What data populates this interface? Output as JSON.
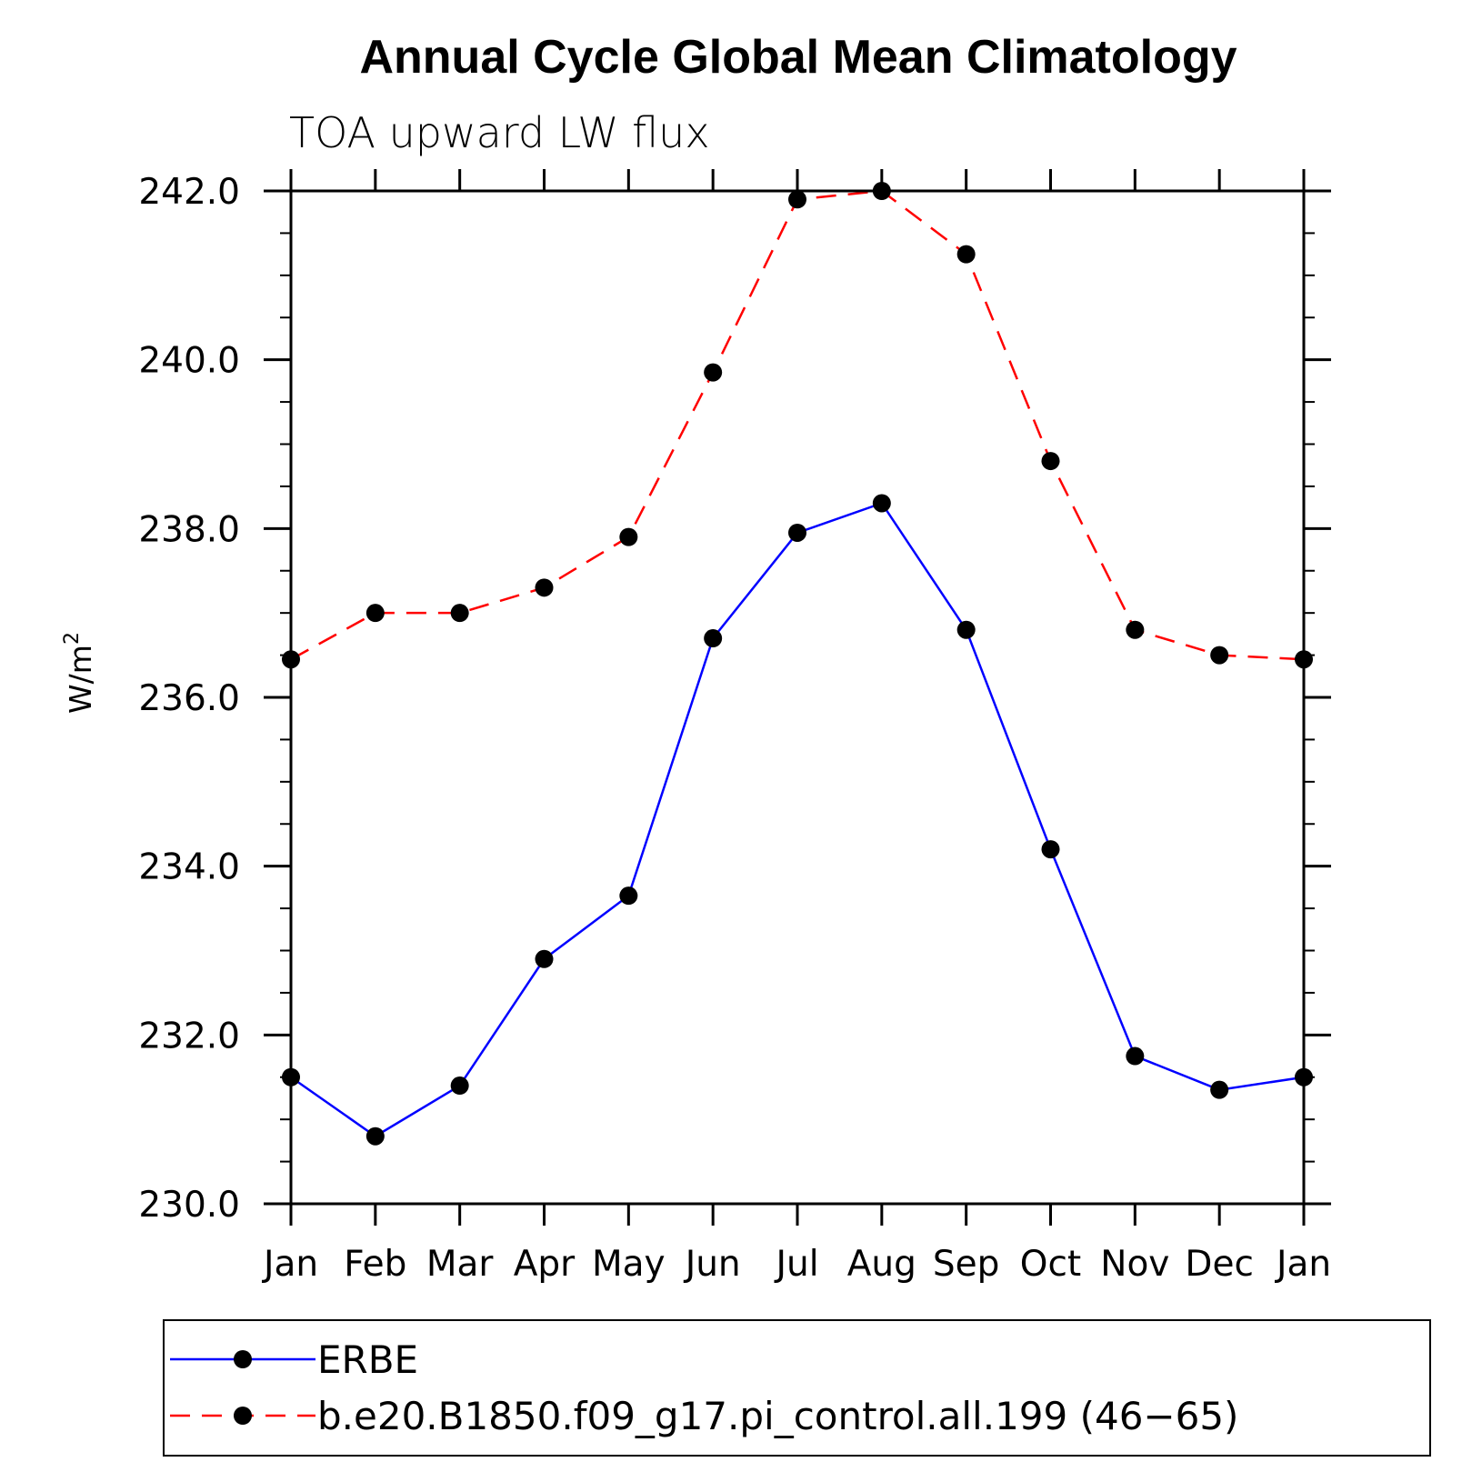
{
  "chart_data": {
    "type": "line",
    "title": "Annual Cycle Global Mean Climatology",
    "subtitle": "TOA upward LW flux",
    "xlabel": "",
    "ylabel": "W/m",
    "ylabel_superscript": "2",
    "categories": [
      "Jan",
      "Feb",
      "Mar",
      "Apr",
      "May",
      "Jun",
      "Jul",
      "Aug",
      "Sep",
      "Oct",
      "Nov",
      "Dec",
      "Jan"
    ],
    "ylim": [
      230.0,
      242.0
    ],
    "yticks": [
      "230.0",
      "232.0",
      "234.0",
      "236.0",
      "238.0",
      "240.0",
      "242.0"
    ],
    "legend_position": "bottom",
    "series": [
      {
        "name": "ERBE",
        "color": "#0000ff",
        "style": "solid",
        "marker": "filled-circle",
        "values": [
          231.5,
          230.8,
          231.4,
          232.9,
          233.65,
          236.7,
          237.95,
          238.3,
          236.8,
          234.2,
          231.75,
          231.35,
          231.5
        ]
      },
      {
        "name": "b.e20.B1850.f09_g17.pi_control.all.199 (46−65)",
        "color": "#ff0000",
        "style": "dashed",
        "marker": "filled-circle",
        "values": [
          236.45,
          237.0,
          237.0,
          237.3,
          237.9,
          239.85,
          241.9,
          242.0,
          241.25,
          238.8,
          236.8,
          236.5,
          236.45
        ]
      }
    ]
  }
}
